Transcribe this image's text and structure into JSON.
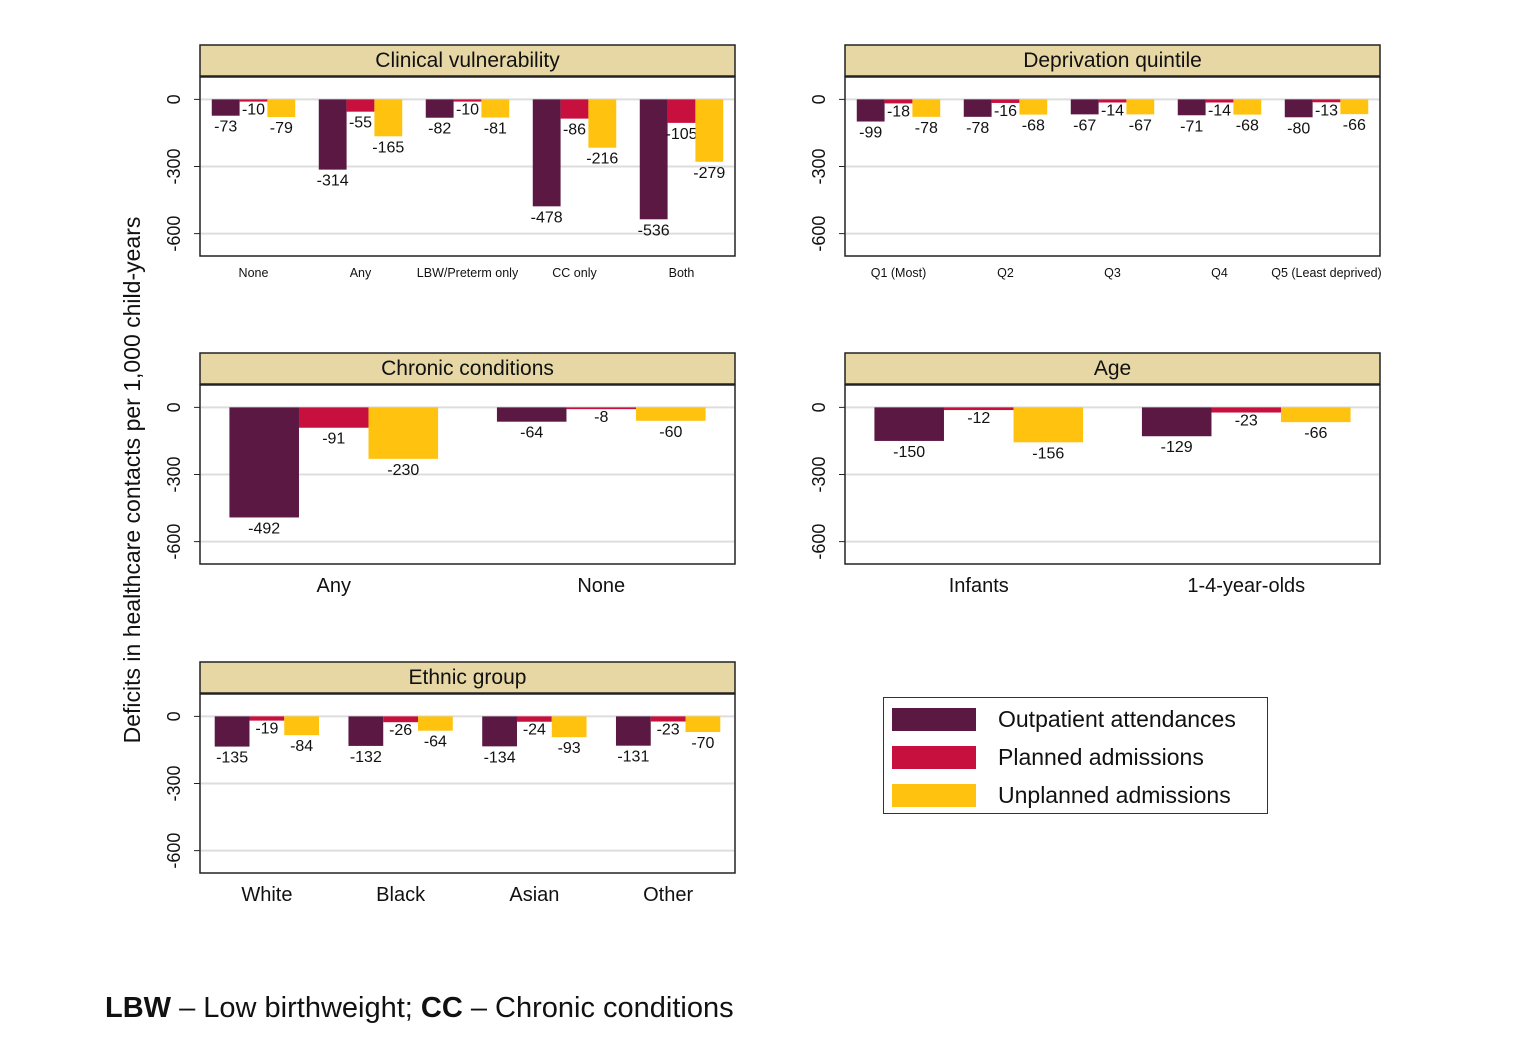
{
  "chart_data": {
    "type": "bar",
    "ylabel": "Deficits in healthcare contacts per 1,000 child-years",
    "ylim": [
      -700,
      100
    ],
    "yticks": [
      0,
      -300,
      -600
    ],
    "grid": true,
    "legend_position": "bottom-right",
    "series_names": [
      "Outpatient attendances",
      "Planned admissions",
      "Unplanned admissions"
    ],
    "colors": [
      "#5a1843",
      "#c8103e",
      "#ffc20e"
    ],
    "panels": [
      {
        "title": "Clinical vulnerability",
        "categories": [
          "None",
          "Any",
          "LBW/Preterm only",
          "CC only",
          "Both"
        ],
        "series": [
          {
            "name": "Outpatient attendances",
            "values": [
              -73,
              -314,
              -82,
              -478,
              -536
            ]
          },
          {
            "name": "Planned admissions",
            "values": [
              -10,
              -55,
              -10,
              -86,
              -105
            ]
          },
          {
            "name": "Unplanned admissions",
            "values": [
              -79,
              -165,
              -81,
              -216,
              -279
            ]
          }
        ]
      },
      {
        "title": "Deprivation quintile",
        "categories": [
          "Q1 (Most)",
          "Q2",
          "Q3",
          "Q4",
          "Q5 (Least deprived)"
        ],
        "series": [
          {
            "name": "Outpatient attendances",
            "values": [
              -99,
              -78,
              -67,
              -71,
              -80
            ]
          },
          {
            "name": "Planned admissions",
            "values": [
              -18,
              -16,
              -14,
              -14,
              -13
            ]
          },
          {
            "name": "Unplanned admissions",
            "values": [
              -78,
              -68,
              -67,
              -68,
              -66
            ]
          }
        ]
      },
      {
        "title": "Chronic conditions",
        "categories": [
          "Any",
          "None"
        ],
        "series": [
          {
            "name": "Outpatient attendances",
            "values": [
              -492,
              -64
            ]
          },
          {
            "name": "Planned admissions",
            "values": [
              -91,
              -8
            ]
          },
          {
            "name": "Unplanned admissions",
            "values": [
              -230,
              -60
            ]
          }
        ]
      },
      {
        "title": "Age",
        "categories": [
          "Infants",
          "1-4-year-olds"
        ],
        "series": [
          {
            "name": "Outpatient attendances",
            "values": [
              -150,
              -129
            ]
          },
          {
            "name": "Planned admissions",
            "values": [
              -12,
              -23
            ]
          },
          {
            "name": "Unplanned admissions",
            "values": [
              -156,
              -66
            ]
          }
        ]
      },
      {
        "title": "Ethnic group",
        "categories": [
          "White",
          "Black",
          "Asian",
          "Other"
        ],
        "series": [
          {
            "name": "Outpatient attendances",
            "values": [
              -135,
              -132,
              -134,
              -131
            ]
          },
          {
            "name": "Planned admissions",
            "values": [
              -19,
              -26,
              -24,
              -23
            ]
          },
          {
            "name": "Unplanned admissions",
            "values": [
              -84,
              -64,
              -93,
              -70
            ]
          }
        ]
      }
    ]
  },
  "footnote": {
    "term1": "LBW",
    "def1": " – Low birthweight; ",
    "term2": "CC",
    "def2": " – Chronic conditions"
  }
}
